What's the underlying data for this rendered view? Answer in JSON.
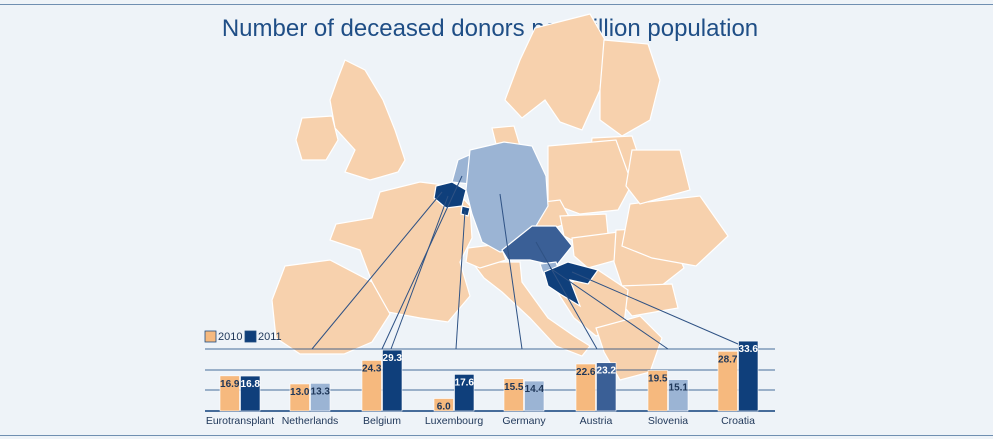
{
  "title": "Number of deceased donors per million population",
  "colors": {
    "background": "#eef3f8",
    "land": "#f7d1ad",
    "land_border": "#ffffff",
    "series_2010": "#f6b97e",
    "series_2011_dark": "#0f3f7b",
    "series_2011_light": "#9bb4d4",
    "leader_line": "#2f5284",
    "title": "#1f4e86"
  },
  "chart_data": {
    "type": "bar",
    "title": "Number of deceased donors per million population",
    "xlabel": "",
    "ylabel": "",
    "ylim": [
      0,
      36
    ],
    "grid": true,
    "legend_position": "top-left",
    "categories": [
      "Eurotransplant",
      "Netherlands",
      "Belgium",
      "Luxembourg",
      "Germany",
      "Austria",
      "Slovenia",
      "Croatia"
    ],
    "series": [
      {
        "name": "2010",
        "values": [
          16.9,
          13.0,
          24.3,
          6.0,
          15.5,
          22.6,
          19.5,
          28.7
        ]
      },
      {
        "name": "2011",
        "values": [
          16.8,
          13.3,
          29.3,
          17.6,
          14.4,
          23.2,
          15.1,
          33.6
        ]
      }
    ],
    "value_labels": [
      [
        "16.9",
        "13.0",
        "24.3",
        "6.0",
        "15.5",
        "22.6",
        "19.5",
        "28.7"
      ],
      [
        "16.8",
        "13.3",
        "29.3",
        "17.6",
        "14.4",
        "23.2",
        "15.1",
        "33.6"
      ]
    ]
  },
  "map": {
    "background_countries": [
      "united-kingdom",
      "ireland",
      "france",
      "iberia",
      "italy",
      "switzerland",
      "scandinavia",
      "finland",
      "baltics",
      "poland",
      "czech-republic",
      "slovakia",
      "hungary",
      "romania",
      "bulgaria",
      "balkans",
      "greece",
      "denmark",
      "ukraine",
      "belarus"
    ],
    "member_countries": [
      "Belgium",
      "Netherlands",
      "Luxembourg",
      "Germany",
      "Austria",
      "Slovenia",
      "Croatia"
    ]
  }
}
